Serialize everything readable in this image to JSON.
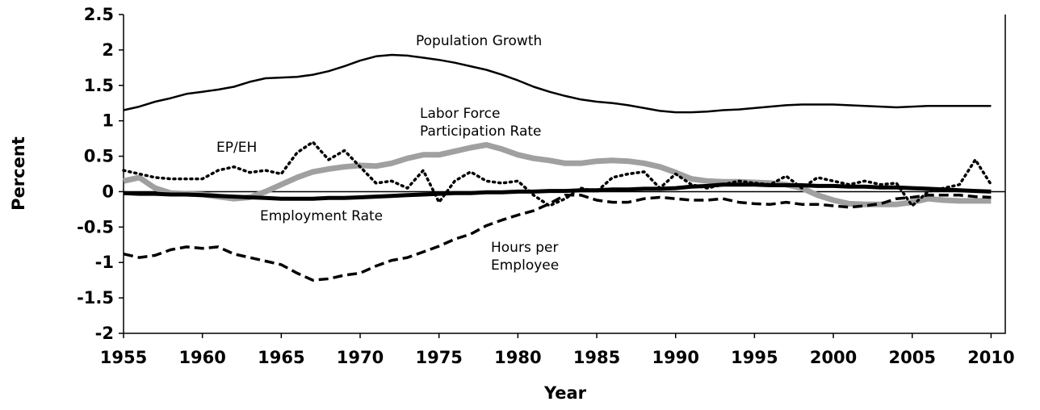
{
  "chart_data": {
    "type": "line",
    "x_label": "Year",
    "y_label": "Percent",
    "x": [
      1955,
      1956,
      1957,
      1958,
      1959,
      1960,
      1961,
      1962,
      1963,
      1964,
      1965,
      1966,
      1967,
      1968,
      1969,
      1970,
      1971,
      1972,
      1973,
      1974,
      1975,
      1976,
      1977,
      1978,
      1979,
      1980,
      1981,
      1982,
      1983,
      1984,
      1985,
      1986,
      1987,
      1988,
      1989,
      1990,
      1991,
      1992,
      1993,
      1994,
      1995,
      1996,
      1997,
      1998,
      1999,
      2000,
      2001,
      2002,
      2003,
      2004,
      2005,
      2006,
      2007,
      2008,
      2009,
      2010
    ],
    "xlim": [
      1955,
      2010.9
    ],
    "xticks": [
      1955,
      1960,
      1965,
      1970,
      1975,
      1980,
      1985,
      1990,
      1995,
      2000,
      2005,
      2010
    ],
    "ylim": [
      -2,
      2.5
    ],
    "yticks": [
      -2,
      -1.5,
      -1,
      -0.5,
      0,
      0.5,
      1,
      1.5,
      2,
      2.5
    ],
    "series": [
      {
        "name": "Population Growth",
        "color": "#000000",
        "style": "solid",
        "values": [
          1.15,
          1.2,
          1.27,
          1.32,
          1.38,
          1.41,
          1.44,
          1.48,
          1.55,
          1.6,
          1.61,
          1.62,
          1.65,
          1.7,
          1.77,
          1.85,
          1.91,
          1.93,
          1.92,
          1.89,
          1.86,
          1.82,
          1.77,
          1.72,
          1.65,
          1.57,
          1.48,
          1.41,
          1.35,
          1.3,
          1.27,
          1.25,
          1.22,
          1.18,
          1.14,
          1.12,
          1.12,
          1.13,
          1.15,
          1.16,
          1.18,
          1.2,
          1.22,
          1.23,
          1.23,
          1.23,
          1.22,
          1.21,
          1.2,
          1.19,
          1.2,
          1.21,
          1.21,
          1.21,
          1.21,
          1.21
        ]
      },
      {
        "name": "Labor Force\nParticipation Rate",
        "color": "#a0a0a0",
        "style": "wide",
        "values": [
          0.15,
          0.2,
          0.05,
          -0.02,
          -0.03,
          -0.04,
          -0.07,
          -0.1,
          -0.08,
          0,
          0.1,
          0.2,
          0.28,
          0.32,
          0.35,
          0.37,
          0.36,
          0.4,
          0.47,
          0.52,
          0.52,
          0.57,
          0.62,
          0.66,
          0.6,
          0.52,
          0.47,
          0.44,
          0.4,
          0.4,
          0.43,
          0.44,
          0.43,
          0.4,
          0.35,
          0.27,
          0.18,
          0.15,
          0.14,
          0.14,
          0.13,
          0.12,
          0.1,
          0.05,
          -0.05,
          -0.12,
          -0.17,
          -0.18,
          -0.18,
          -0.18,
          -0.15,
          -0.1,
          -0.12,
          -0.13,
          -0.13,
          -0.13
        ]
      },
      {
        "name": "EP/EH",
        "color": "#000000",
        "style": "dotted",
        "values": [
          0.3,
          0.25,
          0.2,
          0.18,
          0.18,
          0.18,
          0.3,
          0.35,
          0.27,
          0.3,
          0.25,
          0.55,
          0.7,
          0.45,
          0.58,
          0.35,
          0.12,
          0.15,
          0.05,
          0.3,
          -0.15,
          0.15,
          0.28,
          0.15,
          0.12,
          0.15,
          -0.05,
          -0.2,
          -0.1,
          0.05,
          0,
          0.2,
          0.25,
          0.28,
          0.05,
          0.25,
          0.1,
          0.05,
          0.1,
          0.15,
          0.12,
          0.1,
          0.22,
          0.05,
          0.2,
          0.15,
          0.1,
          0.15,
          0.1,
          0.12,
          -0.2,
          0,
          0.05,
          0.1,
          0.45,
          0.1
        ]
      },
      {
        "name": "Employment Rate",
        "color": "#000000",
        "style": "thick",
        "values": [
          -0.02,
          -0.03,
          -0.03,
          -0.04,
          -0.04,
          -0.05,
          -0.06,
          -0.07,
          -0.08,
          -0.09,
          -0.1,
          -0.1,
          -0.1,
          -0.09,
          -0.09,
          -0.08,
          -0.07,
          -0.06,
          -0.05,
          -0.04,
          -0.03,
          -0.02,
          -0.02,
          -0.01,
          -0.01,
          0,
          0,
          0.01,
          0.01,
          0.02,
          0.02,
          0.03,
          0.03,
          0.04,
          0.04,
          0.05,
          0.07,
          0.08,
          0.1,
          0.1,
          0.1,
          0.09,
          0.09,
          0.09,
          0.08,
          0.08,
          0.07,
          0.07,
          0.06,
          0.06,
          0.05,
          0.04,
          0.03,
          0.02,
          0.01,
          0
        ]
      },
      {
        "name": "Hours per\nEmployee",
        "color": "#000000",
        "style": "dashed",
        "values": [
          -0.88,
          -0.93,
          -0.9,
          -0.82,
          -0.78,
          -0.8,
          -0.78,
          -0.88,
          -0.93,
          -0.98,
          -1.03,
          -1.15,
          -1.25,
          -1.23,
          -1.18,
          -1.15,
          -1.05,
          -0.97,
          -0.93,
          -0.85,
          -0.77,
          -0.67,
          -0.6,
          -0.48,
          -0.4,
          -0.33,
          -0.27,
          -0.17,
          -0.05,
          -0.05,
          -0.12,
          -0.15,
          -0.15,
          -0.1,
          -0.08,
          -0.1,
          -0.12,
          -0.12,
          -0.1,
          -0.15,
          -0.17,
          -0.18,
          -0.15,
          -0.18,
          -0.18,
          -0.2,
          -0.22,
          -0.2,
          -0.17,
          -0.1,
          -0.08,
          -0.05,
          -0.05,
          -0.05,
          -0.07,
          -0.08
        ]
      }
    ]
  }
}
